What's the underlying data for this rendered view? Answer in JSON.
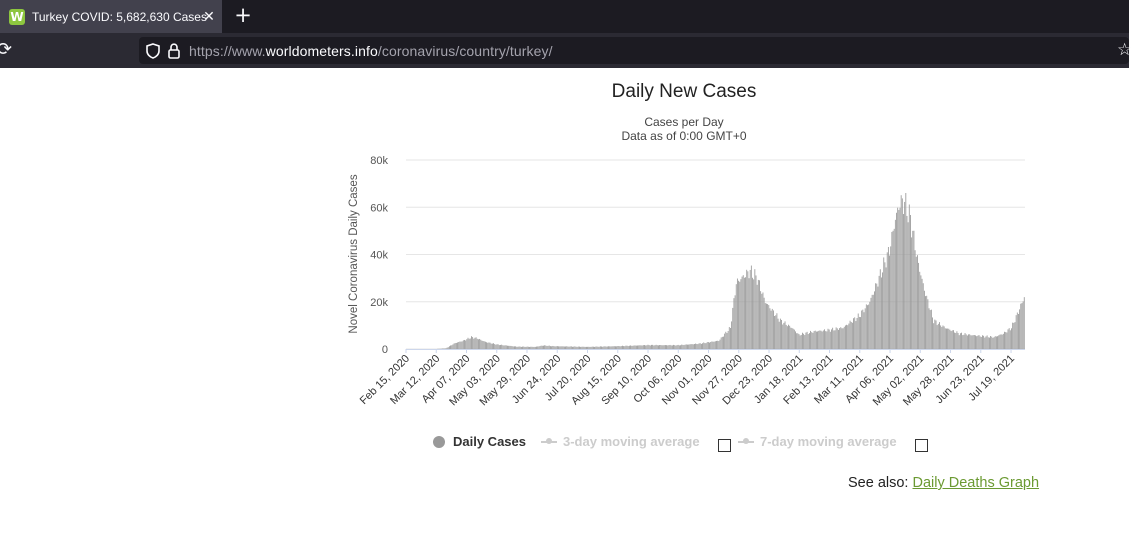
{
  "browser": {
    "tab_title": "Turkey COVID: 5,682,630 Cases",
    "favicon_letter": "W",
    "new_tab_label": "+",
    "close_label": "✕",
    "url_scheme": "https://www.",
    "url_host": "worldometers.info",
    "url_path": "/coronavirus/country/turkey/"
  },
  "page": {
    "see_also_label": "See also:",
    "see_also_link": "Daily Deaths Graph",
    "link_color": "#6b9a32"
  },
  "chart_data": {
    "type": "bar",
    "title": "Daily New Cases",
    "subtitle": "Cases per Day",
    "subtitle2": "Data as of 0:00 GMT+0",
    "ylabel": "Novel Coronavirus Daily Cases",
    "ylim": [
      0,
      80000
    ],
    "yticks": [
      "0",
      "20k",
      "40k",
      "60k",
      "80k"
    ],
    "ytick_values": [
      0,
      20000,
      40000,
      60000,
      80000
    ],
    "grid": true,
    "x_start": "Feb 15, 2020",
    "x_end": "Jul 31, 2021",
    "xticks": [
      "Feb 15, 2020",
      "Mar 12, 2020",
      "Apr 07, 2020",
      "May 03, 2020",
      "May 29, 2020",
      "Jun 24, 2020",
      "Jul 20, 2020",
      "Aug 15, 2020",
      "Sep 10, 2020",
      "Oct 06, 2020",
      "Nov 01, 2020",
      "Nov 27, 2020",
      "Dec 23, 2020",
      "Jan 18, 2021",
      "Feb 13, 2021",
      "Mar 11, 2021",
      "Apr 06, 2021",
      "May 02, 2021",
      "May 28, 2021",
      "Jun 23, 2021",
      "Jul 19, 2021"
    ],
    "bar_color": "#999999",
    "series_profile": [
      [
        "Feb 15, 2020",
        0
      ],
      [
        "Mar 10, 2020",
        0
      ],
      [
        "Mar 20, 2020",
        300
      ],
      [
        "Mar 28, 2020",
        2500
      ],
      [
        "Apr 04, 2020",
        3500
      ],
      [
        "Apr 11, 2020",
        5000
      ],
      [
        "Apr 16, 2020",
        4500
      ],
      [
        "Apr 23, 2020",
        3000
      ],
      [
        "May 03, 2020",
        1900
      ],
      [
        "May 20, 2020",
        1000
      ],
      [
        "Jun 05, 2020",
        900
      ],
      [
        "Jun 12, 2020",
        1500
      ],
      [
        "Jun 20, 2020",
        1200
      ],
      [
        "Jul 20, 2020",
        900
      ],
      [
        "Aug 15, 2020",
        1200
      ],
      [
        "Sep 10, 2020",
        1650
      ],
      [
        "Oct 06, 2020",
        1600
      ],
      [
        "Oct 25, 2020",
        2300
      ],
      [
        "Nov 10, 2020",
        3500
      ],
      [
        "Nov 20, 2020",
        9000
      ],
      [
        "Nov 25, 2020",
        28000
      ],
      [
        "Dec 02, 2020",
        31000
      ],
      [
        "Dec 07, 2020",
        33000
      ],
      [
        "Dec 13, 2020",
        30000
      ],
      [
        "Dec 20, 2020",
        20000
      ],
      [
        "Jan 02, 2021",
        12000
      ],
      [
        "Jan 12, 2021",
        9000
      ],
      [
        "Jan 18, 2021",
        6000
      ],
      [
        "Feb 01, 2021",
        7500
      ],
      [
        "Feb 13, 2021",
        8000
      ],
      [
        "Feb 25, 2021",
        9000
      ],
      [
        "Mar 05, 2021",
        12000
      ],
      [
        "Mar 11, 2021",
        14000
      ],
      [
        "Mar 20, 2021",
        20000
      ],
      [
        "Mar 28, 2021",
        30000
      ],
      [
        "Apr 06, 2021",
        42000
      ],
      [
        "Apr 11, 2021",
        55000
      ],
      [
        "Apr 15, 2021",
        62000
      ],
      [
        "Apr 19, 2021",
        62000
      ],
      [
        "Apr 24, 2021",
        55000
      ],
      [
        "Apr 30, 2021",
        38000
      ],
      [
        "May 06, 2021",
        25000
      ],
      [
        "May 14, 2021",
        12000
      ],
      [
        "May 24, 2021",
        9000
      ],
      [
        "Jun 05, 2021",
        6500
      ],
      [
        "Jun 23, 2021",
        5500
      ],
      [
        "Jul 05, 2021",
        5000
      ],
      [
        "Jul 13, 2021",
        6500
      ],
      [
        "Jul 20, 2021",
        9000
      ],
      [
        "Jul 27, 2021",
        17000
      ],
      [
        "Jul 31, 2021",
        22000
      ]
    ],
    "legend": [
      {
        "name": "Daily Cases",
        "color": "#999999",
        "active": true
      },
      {
        "name": "3-day moving average",
        "color": "#cccccc",
        "active": false
      },
      {
        "name": "7-day moving average",
        "color": "#cccccc",
        "active": false
      }
    ]
  }
}
